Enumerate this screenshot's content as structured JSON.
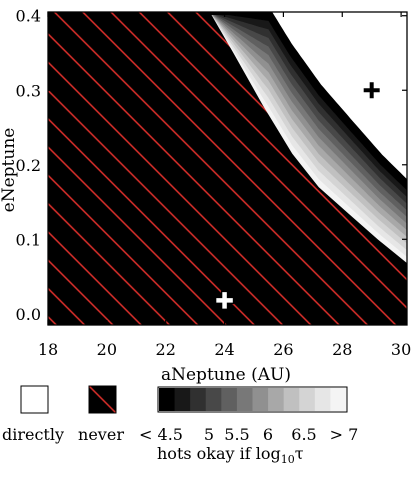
{
  "chart_data": {
    "type": "heatmap",
    "xlabel": "aNeptune (AU)",
    "ylabel": "eNeptune",
    "xlim": [
      18,
      30.2
    ],
    "ylim": [
      -0.015,
      0.405
    ],
    "x_ticks": [
      18,
      20,
      22,
      24,
      26,
      28,
      30
    ],
    "x_tick_labels": [
      "18",
      "20",
      "22",
      "24",
      "26",
      "28",
      "30"
    ],
    "y_ticks": [
      0.0,
      0.1,
      0.2,
      0.3,
      0.4
    ],
    "y_tick_labels": [
      "0.0",
      "0.1",
      "0.2",
      "0.3",
      "0.4"
    ],
    "regions": {
      "never_boundary": [
        [
          23.5,
          0.405
        ],
        [
          24.3,
          0.35
        ],
        [
          25.3,
          0.28
        ],
        [
          26.3,
          0.215
        ],
        [
          27.2,
          0.17
        ],
        [
          28.2,
          0.135
        ],
        [
          29.2,
          0.1
        ],
        [
          30.2,
          0.068
        ]
      ],
      "directly_boundary": [
        [
          25.5,
          0.405
        ],
        [
          26.2,
          0.36
        ],
        [
          27.2,
          0.305
        ],
        [
          28.3,
          0.255
        ],
        [
          29.3,
          0.21
        ],
        [
          30.2,
          0.175
        ]
      ],
      "fill_order": "light at the never boundary, darker toward the directly boundary"
    },
    "markers": [
      {
        "name": "filled-cross",
        "x": 29.0,
        "y": 0.3,
        "color": "#000000"
      },
      {
        "name": "open-cross",
        "x": 24.0,
        "y": 0.018,
        "color": "#ffffff"
      }
    ],
    "legend": {
      "directly_label": "directly",
      "never_label": "never",
      "scale_labels": [
        "< 4.5",
        "5",
        "5.5",
        "6",
        "6.5",
        "> 7"
      ],
      "caption_prefix": "hots okay if log",
      "caption_sub": "10",
      "caption_suffix": "τ"
    },
    "colors": {
      "never_fill": "#000000",
      "hatch": "#e0302c",
      "directly_fill": "#ffffff",
      "gray_steps": [
        "#000000",
        "#181818",
        "#303030",
        "#484848",
        "#606060",
        "#787878",
        "#909090",
        "#a8a8a8",
        "#c0c0c0",
        "#d4d4d4",
        "#e6e6e6",
        "#f4f4f4"
      ]
    }
  }
}
